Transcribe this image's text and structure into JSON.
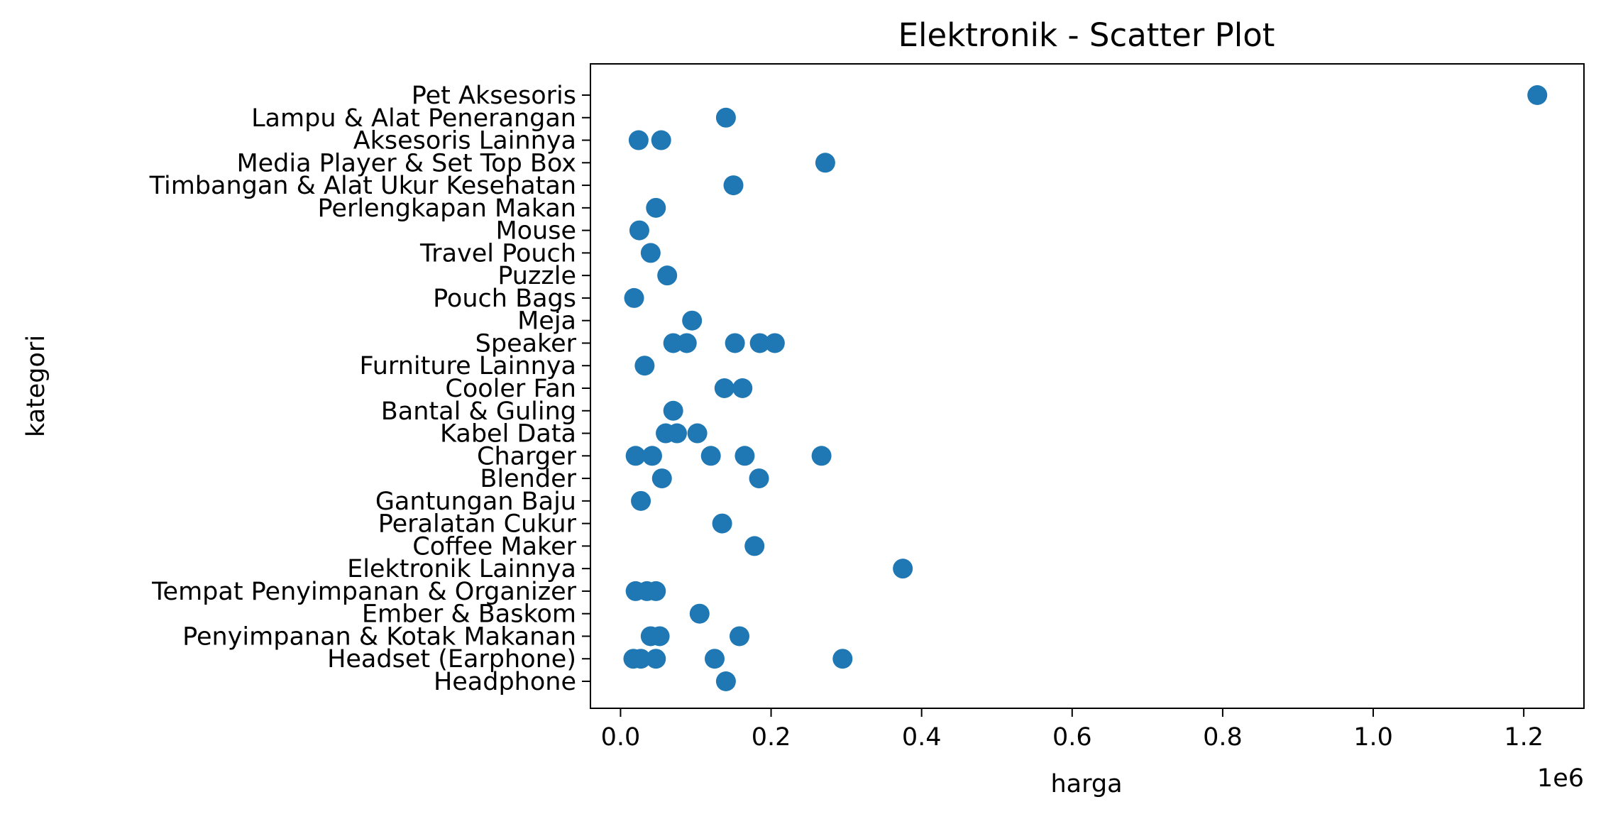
{
  "chart_data": {
    "type": "scatter",
    "title": "Elektronik - Scatter Plot",
    "xlabel": "harga",
    "ylabel": "kategori",
    "x_offset_label": "1e6",
    "xlim": [
      -40000,
      1280000
    ],
    "x_ticks": [
      0,
      200000,
      400000,
      600000,
      800000,
      1000000,
      1200000
    ],
    "x_tick_labels": [
      "0.0",
      "0.2",
      "0.4",
      "0.6",
      "0.8",
      "1.0",
      "1.2"
    ],
    "grid": false,
    "marker_color": "#1f77b4",
    "categories": [
      "Headphone",
      "Headset (Earphone)",
      "Penyimpanan & Kotak Makanan",
      "Ember & Baskom",
      "Tempat Penyimpanan & Organizer",
      "Elektronik Lainnya",
      "Coffee Maker",
      "Peralatan Cukur",
      "Gantungan Baju",
      "Blender",
      "Charger",
      "Kabel Data",
      "Bantal & Guling",
      "Cooler Fan",
      "Furniture Lainnya",
      "Speaker",
      "Meja",
      "Pouch Bags",
      "Puzzle",
      "Travel Pouch ",
      "Mouse",
      "Perlengkapan Makan",
      "Timbangan & Alat Ukur Kesehatan",
      "Media Player & Set Top Box",
      "Aksesoris Lainnya",
      "Lampu & Alat Penerangan",
      "Pet Aksesoris"
    ],
    "points": [
      {
        "category": "Headphone",
        "x": 140000
      },
      {
        "category": "Headset (Earphone)",
        "x": 17000
      },
      {
        "category": "Headset (Earphone)",
        "x": 27000
      },
      {
        "category": "Headset (Earphone)",
        "x": 47000
      },
      {
        "category": "Headset (Earphone)",
        "x": 125000
      },
      {
        "category": "Headset (Earphone)",
        "x": 295000
      },
      {
        "category": "Penyimpanan & Kotak Makanan",
        "x": 40000
      },
      {
        "category": "Penyimpanan & Kotak Makanan",
        "x": 52000
      },
      {
        "category": "Penyimpanan & Kotak Makanan",
        "x": 158000
      },
      {
        "category": "Ember & Baskom",
        "x": 105000
      },
      {
        "category": "Tempat Penyimpanan & Organizer",
        "x": 20000
      },
      {
        "category": "Tempat Penyimpanan & Organizer",
        "x": 35000
      },
      {
        "category": "Tempat Penyimpanan & Organizer",
        "x": 47000
      },
      {
        "category": "Elektronik Lainnya",
        "x": 375000
      },
      {
        "category": "Coffee Maker",
        "x": 178000
      },
      {
        "category": "Peralatan Cukur",
        "x": 135000
      },
      {
        "category": "Gantungan Baju",
        "x": 27000
      },
      {
        "category": "Blender",
        "x": 55000
      },
      {
        "category": "Blender",
        "x": 184000
      },
      {
        "category": "Charger",
        "x": 20000
      },
      {
        "category": "Charger",
        "x": 42000
      },
      {
        "category": "Charger",
        "x": 120000
      },
      {
        "category": "Charger",
        "x": 165000
      },
      {
        "category": "Charger",
        "x": 267000
      },
      {
        "category": "Kabel Data",
        "x": 60000
      },
      {
        "category": "Kabel Data",
        "x": 75000
      },
      {
        "category": "Kabel Data",
        "x": 102000
      },
      {
        "category": "Bantal & Guling",
        "x": 70000
      },
      {
        "category": "Cooler Fan",
        "x": 138000
      },
      {
        "category": "Cooler Fan",
        "x": 162000
      },
      {
        "category": "Furniture Lainnya",
        "x": 32000
      },
      {
        "category": "Speaker",
        "x": 70000
      },
      {
        "category": "Speaker",
        "x": 88000
      },
      {
        "category": "Speaker",
        "x": 152000
      },
      {
        "category": "Speaker",
        "x": 185000
      },
      {
        "category": "Speaker",
        "x": 205000
      },
      {
        "category": "Meja",
        "x": 95000
      },
      {
        "category": "Pouch Bags",
        "x": 18000
      },
      {
        "category": "Puzzle",
        "x": 62000
      },
      {
        "category": "Travel Pouch ",
        "x": 40000
      },
      {
        "category": "Mouse",
        "x": 25000
      },
      {
        "category": "Perlengkapan Makan",
        "x": 47000
      },
      {
        "category": "Timbangan & Alat Ukur Kesehatan",
        "x": 150000
      },
      {
        "category": "Media Player & Set Top Box",
        "x": 272000
      },
      {
        "category": "Aksesoris Lainnya",
        "x": 24000
      },
      {
        "category": "Aksesoris Lainnya",
        "x": 54000
      },
      {
        "category": "Lampu & Alat Penerangan",
        "x": 140000
      },
      {
        "category": "Pet Aksesoris",
        "x": 1218000
      }
    ]
  }
}
